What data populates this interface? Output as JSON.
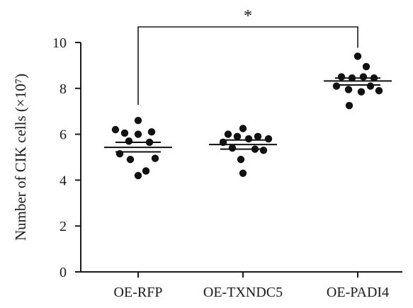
{
  "chart_data": {
    "type": "scatter",
    "ylabel": "Number of CIK cells (×10⁷)",
    "ylim": [
      0,
      10
    ],
    "yticks": [
      0,
      2,
      4,
      6,
      8,
      10
    ],
    "categories": [
      "OE-RFP",
      "OE-TXNDC5",
      "OE-PADI4"
    ],
    "groups": [
      {
        "name": "OE-RFP",
        "mean": 5.43,
        "sem_low": 5.23,
        "sem_high": 5.65,
        "values": [
          6.6,
          6.2,
          6.05,
          6.0,
          6.1,
          5.7,
          5.65,
          5.15,
          4.95,
          4.9,
          4.4,
          4.2
        ]
      },
      {
        "name": "OE-TXNDC5",
        "mean": 5.55,
        "sem_low": 5.35,
        "sem_high": 5.75,
        "values": [
          6.25,
          6.0,
          5.9,
          5.9,
          5.8,
          5.8,
          5.65,
          5.4,
          5.35,
          5.3,
          4.9,
          4.3
        ]
      },
      {
        "name": "OE-PADI4",
        "mean": 8.32,
        "sem_low": 8.15,
        "sem_high": 8.45,
        "values": [
          9.4,
          8.95,
          8.5,
          8.45,
          8.5,
          8.45,
          8.1,
          8.1,
          7.95,
          7.85,
          7.9,
          7.25
        ]
      }
    ],
    "significance": {
      "from": "OE-RFP",
      "to": "OE-PADI4",
      "label": "*"
    },
    "grid": false,
    "legend": "none"
  }
}
